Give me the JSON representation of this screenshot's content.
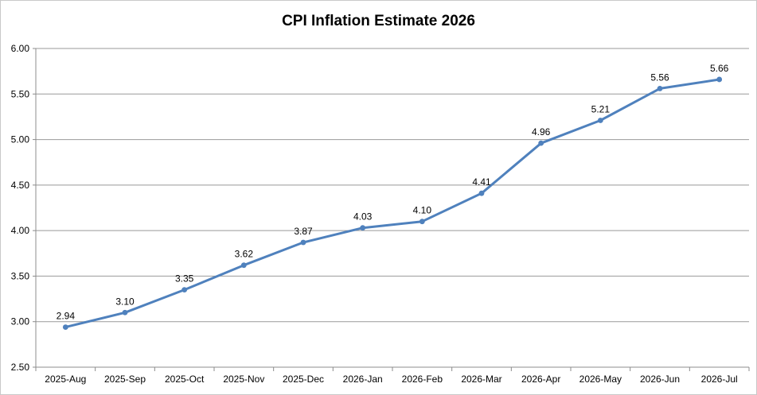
{
  "chart_data": {
    "type": "line",
    "title": "CPI Inflation Estimate 2026",
    "categories": [
      "2025-Aug",
      "2025-Sep",
      "2025-Oct",
      "2025-Nov",
      "2025-Dec",
      "2026-Jan",
      "2026-Feb",
      "2026-Mar",
      "2026-Apr",
      "2026-May",
      "2026-Jun",
      "2026-Jul"
    ],
    "series": [
      {
        "name": "CPI Inflation Estimate",
        "values": [
          2.94,
          3.1,
          3.35,
          3.62,
          3.87,
          4.03,
          4.1,
          4.41,
          4.96,
          5.21,
          5.56,
          5.66
        ],
        "point_labels": [
          "2.94",
          "3.10",
          "3.35",
          "3.62",
          "3.87",
          "4.03",
          "4.10",
          "4.41",
          "4.96",
          "5.21",
          "5.56",
          "5.66"
        ],
        "color": "#4F81BD"
      }
    ],
    "xlabel": "",
    "ylabel": "",
    "ylim": [
      2.5,
      6.0
    ],
    "ytick_step": 0.5,
    "ytick_labels": [
      "6.00",
      "5.50",
      "5.00",
      "4.50",
      "4.00",
      "3.50",
      "3.00",
      "2.50"
    ],
    "grid": true,
    "legend_position": "none"
  },
  "colors": {
    "line": "#4F81BD",
    "marker": "#4F81BD",
    "gridline": "#999999",
    "axis": "#8C8C8C",
    "text": "#000000",
    "frame_border": "#C9C9C9",
    "background": "#FFFFFF"
  }
}
